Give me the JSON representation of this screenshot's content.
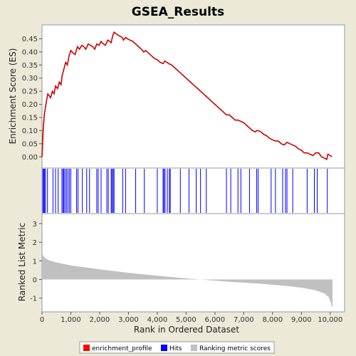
{
  "chart_data": {
    "title": "GSEA_Results",
    "xlabel": "Rank in Ordered Dataset",
    "xlim": [
      0,
      10500
    ],
    "x_ticks": [
      0,
      1000,
      2000,
      3000,
      4000,
      5000,
      6000,
      7000,
      8000,
      9000,
      10000
    ],
    "x_tick_labels": [
      "0",
      "1,000",
      "2,000",
      "3,000",
      "4,000",
      "5,000",
      "6,000",
      "7,000",
      "8,000",
      "9,000",
      "10,000"
    ],
    "panels": [
      {
        "type": "line",
        "ylabel": "Enrichment Score (ES)",
        "ylim": [
          -0.04,
          0.5
        ],
        "y_ticks": [
          0.0,
          0.05,
          0.1,
          0.15,
          0.2,
          0.25,
          0.3,
          0.35,
          0.4,
          0.45
        ],
        "y_tick_labels": [
          "0.00",
          "0.05",
          "0.10",
          "0.15",
          "0.20",
          "0.25",
          "0.30",
          "0.35",
          "0.40",
          "0.45"
        ],
        "series": [
          {
            "name": "enrichment_profile",
            "color": "#cc0000",
            "points": [
              [
                0,
                0.0
              ],
              [
                40,
                0.1
              ],
              [
                80,
                0.16
              ],
              [
                150,
                0.21
              ],
              [
                200,
                0.24
              ],
              [
                300,
                0.225
              ],
              [
                360,
                0.25
              ],
              [
                420,
                0.24
              ],
              [
                470,
                0.27
              ],
              [
                540,
                0.26
              ],
              [
                600,
                0.285
              ],
              [
                660,
                0.275
              ],
              [
                700,
                0.31
              ],
              [
                760,
                0.335
              ],
              [
                820,
                0.36
              ],
              [
                880,
                0.35
              ],
              [
                940,
                0.385
              ],
              [
                1000,
                0.405
              ],
              [
                1080,
                0.395
              ],
              [
                1150,
                0.39
              ],
              [
                1230,
                0.42
              ],
              [
                1300,
                0.41
              ],
              [
                1380,
                0.425
              ],
              [
                1450,
                0.42
              ],
              [
                1520,
                0.41
              ],
              [
                1600,
                0.43
              ],
              [
                1680,
                0.425
              ],
              [
                1760,
                0.42
              ],
              [
                1830,
                0.41
              ],
              [
                1900,
                0.43
              ],
              [
                1980,
                0.425
              ],
              [
                2050,
                0.44
              ],
              [
                2130,
                0.43
              ],
              [
                2200,
                0.425
              ],
              [
                2280,
                0.445
              ],
              [
                2350,
                0.44
              ],
              [
                2400,
                0.435
              ],
              [
                2450,
                0.46
              ],
              [
                2500,
                0.475
              ],
              [
                2560,
                0.47
              ],
              [
                2620,
                0.465
              ],
              [
                2700,
                0.46
              ],
              [
                2780,
                0.455
              ],
              [
                2830,
                0.445
              ],
              [
                2900,
                0.455
              ],
              [
                2960,
                0.45
              ],
              [
                3050,
                0.445
              ],
              [
                3150,
                0.44
              ],
              [
                3250,
                0.43
              ],
              [
                3350,
                0.42
              ],
              [
                3450,
                0.41
              ],
              [
                3530,
                0.4
              ],
              [
                3600,
                0.405
              ],
              [
                3700,
                0.395
              ],
              [
                3800,
                0.385
              ],
              [
                3900,
                0.375
              ],
              [
                4000,
                0.37
              ],
              [
                4100,
                0.36
              ],
              [
                4200,
                0.355
              ],
              [
                4260,
                0.365
              ],
              [
                4330,
                0.36
              ],
              [
                4400,
                0.355
              ],
              [
                4500,
                0.35
              ],
              [
                4600,
                0.34
              ],
              [
                4700,
                0.33
              ],
              [
                4800,
                0.32
              ],
              [
                4900,
                0.31
              ],
              [
                5000,
                0.3
              ],
              [
                5100,
                0.29
              ],
              [
                5200,
                0.28
              ],
              [
                5300,
                0.27
              ],
              [
                5400,
                0.26
              ],
              [
                5500,
                0.25
              ],
              [
                5600,
                0.24
              ],
              [
                5700,
                0.23
              ],
              [
                5800,
                0.22
              ],
              [
                5900,
                0.21
              ],
              [
                6000,
                0.2
              ],
              [
                6100,
                0.19
              ],
              [
                6200,
                0.18
              ],
              [
                6300,
                0.17
              ],
              [
                6400,
                0.16
              ],
              [
                6500,
                0.16
              ],
              [
                6600,
                0.15
              ],
              [
                6700,
                0.14
              ],
              [
                6800,
                0.14
              ],
              [
                6900,
                0.135
              ],
              [
                7000,
                0.13
              ],
              [
                7100,
                0.12
              ],
              [
                7200,
                0.11
              ],
              [
                7300,
                0.1
              ],
              [
                7400,
                0.095
              ],
              [
                7450,
                0.1
              ],
              [
                7500,
                0.1
              ],
              [
                7600,
                0.095
              ],
              [
                7700,
                0.085
              ],
              [
                7800,
                0.08
              ],
              [
                7900,
                0.07
              ],
              [
                8000,
                0.065
              ],
              [
                8100,
                0.06
              ],
              [
                8200,
                0.06
              ],
              [
                8300,
                0.05
              ],
              [
                8400,
                0.045
              ],
              [
                8450,
                0.05
              ],
              [
                8500,
                0.055
              ],
              [
                8600,
                0.05
              ],
              [
                8700,
                0.045
              ],
              [
                8800,
                0.04
              ],
              [
                8900,
                0.03
              ],
              [
                9000,
                0.025
              ],
              [
                9100,
                0.015
              ],
              [
                9200,
                0.015
              ],
              [
                9300,
                0.01
              ],
              [
                9400,
                0.005
              ],
              [
                9500,
                0.015
              ],
              [
                9600,
                0.015
              ],
              [
                9700,
                0.0
              ],
              [
                9800,
                -0.005
              ],
              [
                9880,
                -0.01
              ],
              [
                9920,
                0.01
              ],
              [
                10000,
                0.005
              ],
              [
                10060,
                0.0
              ]
            ]
          }
        ]
      },
      {
        "type": "barcode",
        "name": "Hits",
        "color": "#0000ff",
        "hit_positions": [
          30,
          60,
          90,
          120,
          190,
          380,
          470,
          560,
          690,
          730,
          760,
          800,
          850,
          900,
          950,
          1000,
          1200,
          1250,
          1400,
          1550,
          1650,
          1900,
          1950,
          2050,
          2250,
          2300,
          2400,
          2430,
          2470,
          2500,
          2800,
          2900,
          3250,
          3550,
          4000,
          4200,
          4230,
          4270,
          4350,
          4420,
          4450,
          4800,
          5100,
          5350,
          5500,
          5700,
          6400,
          6550,
          6800,
          6900,
          7200,
          7450,
          7500,
          7950,
          8100,
          8350,
          8450,
          8500,
          8700,
          9200,
          9450,
          9550,
          9900
        ]
      },
      {
        "type": "area",
        "name": "Ranking metric scores",
        "color": "#c0c0c0",
        "ylabel": "Ranked List Metric",
        "ylim": [
          -1.7,
          3.5
        ],
        "y_ticks": [
          -1,
          0,
          1,
          2,
          3
        ],
        "y_tick_labels": [
          "-1",
          "0",
          "1",
          "2",
          "3"
        ],
        "points": [
          [
            0,
            1.45
          ],
          [
            50,
            1.25
          ],
          [
            150,
            1.1
          ],
          [
            300,
            1.0
          ],
          [
            500,
            0.92
          ],
          [
            800,
            0.82
          ],
          [
            1000,
            0.75
          ],
          [
            1500,
            0.65
          ],
          [
            2000,
            0.55
          ],
          [
            2500,
            0.45
          ],
          [
            3000,
            0.36
          ],
          [
            3500,
            0.28
          ],
          [
            4000,
            0.2
          ],
          [
            4500,
            0.13
          ],
          [
            5000,
            0.06
          ],
          [
            5500,
            0.0
          ],
          [
            6000,
            -0.06
          ],
          [
            6500,
            -0.12
          ],
          [
            7000,
            -0.17
          ],
          [
            7500,
            -0.22
          ],
          [
            8000,
            -0.28
          ],
          [
            8500,
            -0.35
          ],
          [
            9000,
            -0.44
          ],
          [
            9500,
            -0.58
          ],
          [
            9800,
            -0.75
          ],
          [
            9950,
            -0.95
          ],
          [
            10000,
            -1.15
          ],
          [
            10050,
            -1.4
          ],
          [
            10080,
            -1.55
          ]
        ]
      }
    ],
    "legend": {
      "placement": "bottom-center",
      "entries": [
        {
          "name": "enrichment_profile",
          "color": "#ff0000"
        },
        {
          "name": "Hits",
          "color": "#0000ff"
        },
        {
          "name": "Ranking metric scores",
          "color": "#c0c0c0"
        }
      ]
    }
  }
}
